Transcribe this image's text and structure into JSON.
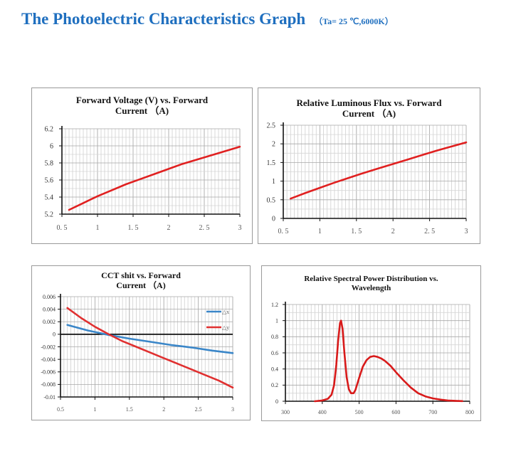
{
  "page": {
    "title": "The Photoelectric Characteristics Graph",
    "conditions": "（Ta= 25 ℃,6000K）"
  },
  "charts": [
    {
      "title_line1": "Forward Voltage (V) vs. Forward",
      "title_line2": "Current （A)",
      "color": "#e02020",
      "chart_data": {
        "type": "line",
        "title": "Forward Voltage (V) vs. Forward Current （A)",
        "xlabel": "",
        "ylabel": "",
        "xlim": [
          0.5,
          3
        ],
        "ylim": [
          5.2,
          6.2
        ],
        "x_ticks": [
          0.5,
          1,
          1.5,
          2,
          2.5,
          3
        ],
        "x_tick_labels": [
          "0. 5",
          "1",
          "1. 5",
          "2",
          "2. 5",
          "3"
        ],
        "y_ticks": [
          5.2,
          5.4,
          5.6,
          5.8,
          6,
          6.2
        ],
        "y_tick_labels": [
          "5.2",
          "5.4",
          "5.6",
          "5.8",
          "6",
          "6.2"
        ],
        "grid": true,
        "series": [
          {
            "x": [
              0.6,
              0.8,
              1.0,
              1.2,
              1.4,
              1.6,
              1.8,
              2.0,
              2.2,
              2.4,
              2.6,
              2.8,
              3.0
            ],
            "y": [
              5.25,
              5.33,
              5.41,
              5.48,
              5.55,
              5.61,
              5.67,
              5.73,
              5.79,
              5.84,
              5.89,
              5.94,
              5.99
            ]
          }
        ]
      }
    },
    {
      "title_line1": "Relative Luminous Flux vs. Forward",
      "title_line2": "Current （A)",
      "color": "#e02020",
      "chart_data": {
        "type": "line",
        "title": "Relative Luminous Flux vs. Forward Current （A)",
        "xlabel": "",
        "ylabel": "",
        "xlim": [
          0.5,
          3
        ],
        "ylim": [
          0,
          2.5
        ],
        "x_ticks": [
          0.5,
          1,
          1.5,
          2,
          2.5,
          3
        ],
        "x_tick_labels": [
          "0. 5",
          "1",
          "1. 5",
          "2",
          "2. 5",
          "3"
        ],
        "y_ticks": [
          0,
          0.5,
          1,
          1.5,
          2,
          2.5
        ],
        "y_tick_labels": [
          "0",
          "0.5",
          "1",
          "1.5",
          "2",
          "2.5"
        ],
        "grid": true,
        "series": [
          {
            "x": [
              0.6,
              0.8,
              1.0,
              1.2,
              1.4,
              1.6,
              1.8,
              2.0,
              2.2,
              2.4,
              2.6,
              2.8,
              3.0
            ],
            "y": [
              0.53,
              0.68,
              0.82,
              0.96,
              1.09,
              1.22,
              1.34,
              1.46,
              1.58,
              1.7,
              1.82,
              1.93,
              2.04
            ]
          }
        ]
      }
    },
    {
      "title_line1": "CCT shit vs. Forward",
      "title_line2": "Current （A)",
      "chart_data": {
        "type": "line",
        "title": "CCT shit vs. Forward Current （A)",
        "xlabel": "",
        "ylabel": "",
        "xlim": [
          0.5,
          3
        ],
        "ylim": [
          -0.01,
          0.006
        ],
        "x_ticks": [
          0.5,
          1,
          1.5,
          2,
          2.5,
          3
        ],
        "x_tick_labels": [
          "0.5",
          "1",
          "1.5",
          "2",
          "2.5",
          "3"
        ],
        "y_ticks": [
          0.006,
          0.004,
          0.002,
          0,
          -0.002,
          -0.004,
          -0.006,
          -0.008,
          -0.01
        ],
        "y_tick_labels": [
          "0.006",
          "0.004",
          "0.002",
          "0",
          "-0.002",
          "-0.004",
          "-0.006",
          "-0.008",
          "-0.01"
        ],
        "grid": true,
        "zero_line": true,
        "legend_position": "right",
        "series": [
          {
            "name": "△x",
            "color": "#3a86c8",
            "x": [
              0.6,
              0.9,
              1.2,
              1.5,
              1.8,
              2.1,
              2.4,
              2.7,
              3.0
            ],
            "y": [
              0.0015,
              0.0006,
              -0.0001,
              -0.0007,
              -0.0012,
              -0.0017,
              -0.0021,
              -0.0026,
              -0.003
            ]
          },
          {
            "name": "△y",
            "color": "#e03030",
            "x": [
              0.6,
              0.8,
              1.0,
              1.2,
              1.4,
              1.6,
              1.8,
              2.0,
              2.2,
              2.4,
              2.6,
              2.8,
              3.0
            ],
            "y": [
              0.0042,
              0.0026,
              0.0012,
              0.0,
              -0.0011,
              -0.002,
              -0.0029,
              -0.0038,
              -0.0047,
              -0.0056,
              -0.0065,
              -0.0074,
              -0.0085
            ]
          }
        ]
      }
    },
    {
      "title_line1": "Relative Spectral Power Distribution vs.",
      "title_line2": "Wavelength",
      "color": "#d81a1a",
      "chart_data": {
        "type": "line",
        "title": "Relative Spectral Power Distribution vs. Wavelength",
        "xlabel": "",
        "ylabel": "",
        "xlim": [
          300,
          800
        ],
        "ylim": [
          0,
          1.2
        ],
        "x_ticks": [
          300,
          400,
          500,
          600,
          700,
          800
        ],
        "x_tick_labels": [
          "300",
          "400",
          "500",
          "600",
          "700",
          "800"
        ],
        "y_ticks": [
          0,
          0.2,
          0.4,
          0.6,
          0.8,
          1,
          1.2
        ],
        "y_tick_labels": [
          "0",
          "0.2",
          "0.4",
          "0.6",
          "0.8",
          "1",
          "1.2"
        ],
        "grid": true,
        "series": [
          {
            "x": [
              380,
              400,
              415,
              425,
              432,
              438,
              443,
              448,
              451,
              455,
              460,
              466,
              472,
              478,
              485,
              490,
              500,
              510,
              520,
              530,
              540,
              550,
              560,
              570,
              585,
              600,
              620,
              640,
              660,
              680,
              700,
              720,
              740,
              760,
              780
            ],
            "y": [
              0.0,
              0.01,
              0.03,
              0.08,
              0.2,
              0.45,
              0.75,
              0.97,
              1.0,
              0.9,
              0.6,
              0.3,
              0.15,
              0.1,
              0.1,
              0.14,
              0.29,
              0.43,
              0.51,
              0.55,
              0.56,
              0.55,
              0.53,
              0.5,
              0.44,
              0.36,
              0.26,
              0.17,
              0.1,
              0.06,
              0.035,
              0.02,
              0.01,
              0.005,
              0.002
            ]
          }
        ]
      }
    }
  ]
}
